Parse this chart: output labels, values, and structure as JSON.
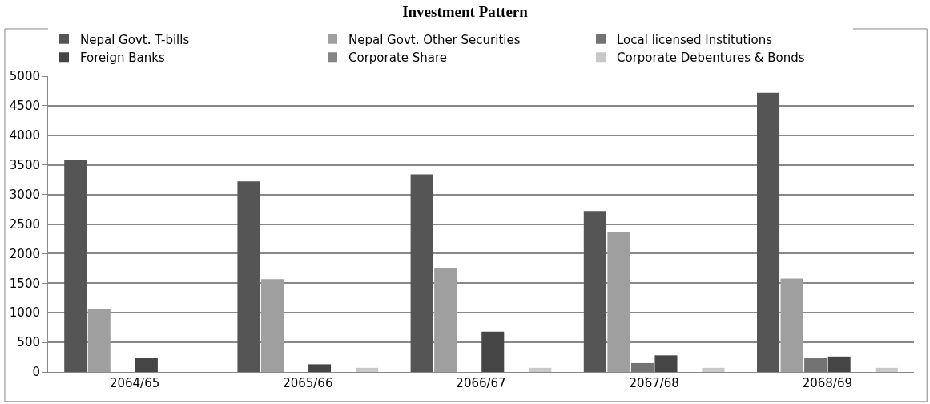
{
  "chart_data": {
    "type": "bar",
    "title": "Investment Pattern",
    "categories": [
      "2064/65",
      "2065/66",
      "2066/67",
      "2067/68",
      "2068/69"
    ],
    "series": [
      {
        "name": "Nepal Govt. T-bills",
        "color": "#555555",
        "values": [
          3590,
          3220,
          3340,
          2720,
          4720
        ]
      },
      {
        "name": "Nepal Govt. Other Securities",
        "color": "#9f9f9f",
        "values": [
          1070,
          1570,
          1760,
          2370,
          1580
        ]
      },
      {
        "name": "Local licensed Institutions",
        "color": "#737373",
        "values": [
          0,
          0,
          0,
          150,
          230
        ]
      },
      {
        "name": "Foreign Banks",
        "color": "#454545",
        "values": [
          240,
          130,
          680,
          280,
          260
        ]
      },
      {
        "name": "Corporate Share",
        "color": "#858585",
        "values": [
          0,
          0,
          0,
          0,
          0
        ]
      },
      {
        "name": "Corporate Debentures & Bonds",
        "color": "#c8c8c8",
        "values": [
          0,
          70,
          70,
          70,
          70
        ]
      }
    ],
    "ylim": [
      0,
      5000
    ],
    "yticks": [
      0,
      500,
      1000,
      1500,
      2000,
      2500,
      3000,
      3500,
      4000,
      4500,
      5000
    ],
    "grid": "y",
    "legend": "top"
  }
}
